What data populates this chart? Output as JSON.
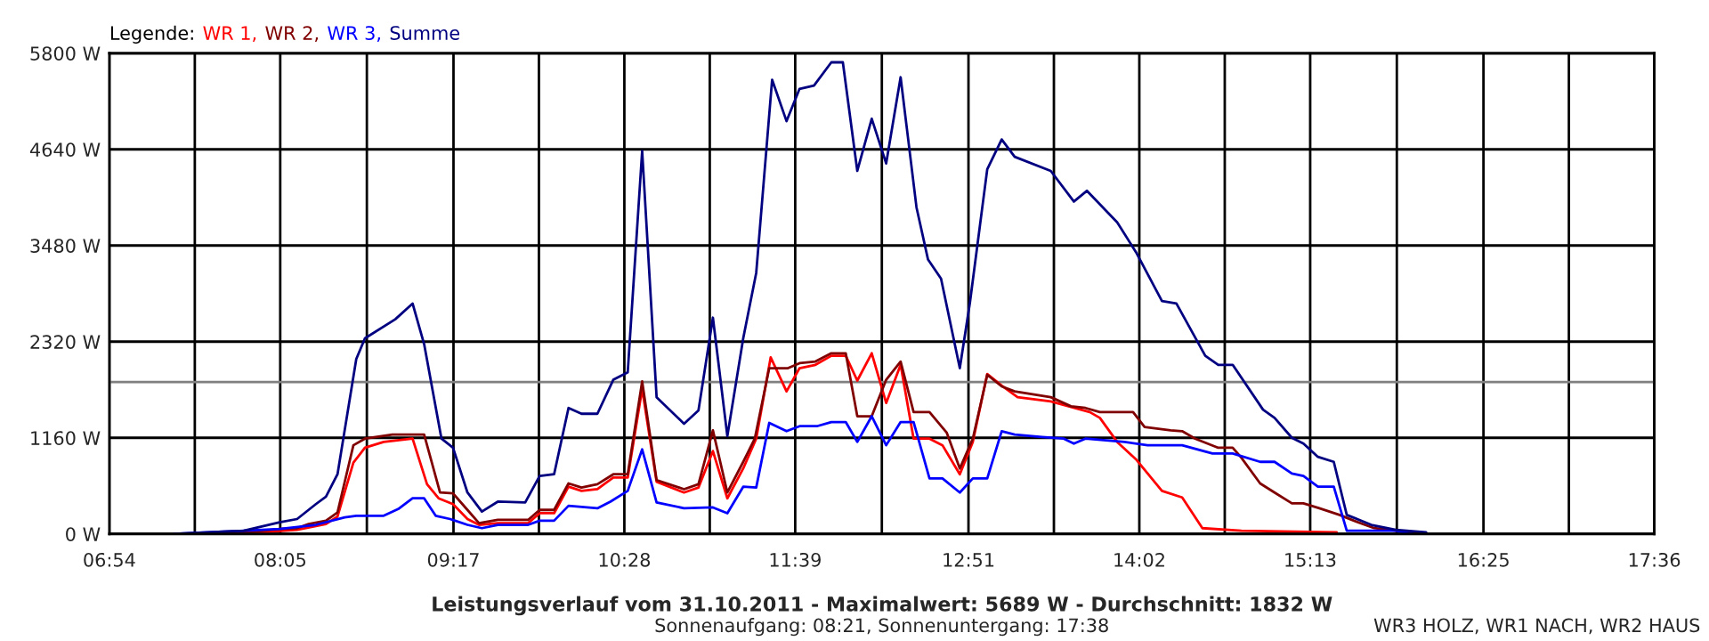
{
  "chart_data": {
    "type": "line",
    "title": "Leistungsverlauf vom 31.10.2011 - Maximalwert: 5689 W - Durchschnitt: 1832 W",
    "subtitle": "Sonnenaufgang: 08:21, Sonnenuntergang: 17:38",
    "annotations": [
      "WR3 HOLZ, WR1 NACH, WR2 HAUS"
    ],
    "legend_title": "Legende:",
    "legend": "top left",
    "grid": true,
    "marker": "none",
    "line_style": "solid",
    "xlim": [
      6.9,
      17.6
    ],
    "ylim": [
      0,
      5800
    ],
    "xticks": [
      {
        "value": 6.9,
        "label": "06:54"
      },
      {
        "value": 7.4917,
        "label": null
      },
      {
        "value": 8.0833,
        "label": "08:05"
      },
      {
        "value": 8.6833,
        "label": null
      },
      {
        "value": 9.2833,
        "label": "09:17"
      },
      {
        "value": 9.875,
        "label": null
      },
      {
        "value": 10.4667,
        "label": "10:28"
      },
      {
        "value": 11.0583,
        "label": null
      },
      {
        "value": 11.65,
        "label": "11:39"
      },
      {
        "value": 12.25,
        "label": null
      },
      {
        "value": 12.85,
        "label": "12:51"
      },
      {
        "value": 13.4417,
        "label": null
      },
      {
        "value": 14.0333,
        "label": "14:02"
      },
      {
        "value": 14.625,
        "label": null
      },
      {
        "value": 15.2167,
        "label": "15:13"
      },
      {
        "value": 15.8167,
        "label": null
      },
      {
        "value": 16.4167,
        "label": "16:25"
      },
      {
        "value": 17.0083,
        "label": null
      },
      {
        "value": 17.6,
        "label": "17:36"
      }
    ],
    "yticks": [
      {
        "value": 0,
        "label": "0 W"
      },
      {
        "value": 1160,
        "label": "1160 W"
      },
      {
        "value": 2320,
        "label": "2320 W"
      },
      {
        "value": 3480,
        "label": "3480 W"
      },
      {
        "value": 4640,
        "label": "4640 W"
      },
      {
        "value": 5800,
        "label": "5800 W"
      }
    ],
    "ref_lines": [
      {
        "axis": "y",
        "value": 1832,
        "color": "#808080"
      }
    ],
    "series": [
      {
        "name": "WR 1,",
        "color": "#ff0000",
        "x": [
          7.35,
          7.87,
          8.2,
          8.4,
          8.48,
          8.59,
          8.67,
          8.8,
          9.0,
          9.1,
          9.18,
          9.28,
          9.38,
          9.46,
          9.59,
          9.8,
          9.88,
          9.98,
          10.08,
          10.17,
          10.28,
          10.39,
          10.49,
          10.59,
          10.69,
          10.88,
          10.98,
          11.08,
          11.18,
          11.29,
          11.38,
          11.48,
          11.59,
          11.68,
          11.79,
          11.9,
          12.0,
          12.08,
          12.18,
          12.28,
          12.38,
          12.47,
          12.58,
          12.67,
          12.79,
          12.88,
          12.98,
          13.08,
          13.19,
          13.42,
          13.69,
          13.76,
          13.88,
          14.01,
          14.19,
          14.33,
          14.47,
          14.74,
          15.4
        ],
        "values": [
          0,
          10,
          50,
          120,
          210,
          860,
          1040,
          1110,
          1150,
          600,
          430,
          360,
          180,
          110,
          130,
          130,
          250,
          250,
          570,
          520,
          540,
          680,
          680,
          1750,
          630,
          500,
          560,
          1000,
          430,
          790,
          1150,
          2130,
          1720,
          2000,
          2040,
          2150,
          2150,
          1850,
          2180,
          1580,
          2040,
          1150,
          1150,
          1070,
          720,
          1110,
          1930,
          1790,
          1650,
          1600,
          1470,
          1400,
          1110,
          900,
          520,
          440,
          70,
          40,
          20
        ]
      },
      {
        "name": "WR 2,",
        "color": "#800000",
        "x": [
          7.35,
          7.87,
          8.08,
          8.2,
          8.28,
          8.4,
          8.48,
          8.59,
          8.67,
          8.86,
          9.08,
          9.19,
          9.28,
          9.38,
          9.46,
          9.59,
          9.8,
          9.88,
          9.98,
          10.08,
          10.17,
          10.28,
          10.39,
          10.49,
          10.59,
          10.69,
          10.88,
          10.98,
          11.08,
          11.18,
          11.29,
          11.37,
          11.47,
          11.6,
          11.68,
          11.79,
          11.9,
          12.0,
          12.08,
          12.18,
          12.28,
          12.38,
          12.47,
          12.58,
          12.7,
          12.79,
          12.88,
          12.98,
          13.08,
          13.17,
          13.42,
          13.56,
          13.66,
          13.76,
          13.99,
          14.07,
          14.25,
          14.33,
          14.42,
          14.58,
          14.68,
          14.74,
          14.87,
          14.97,
          15.09,
          15.17,
          15.28,
          15.42,
          15.52,
          15.66,
          15.81,
          15.97
        ],
        "values": [
          0,
          20,
          60,
          70,
          120,
          160,
          260,
          1070,
          1150,
          1200,
          1200,
          500,
          490,
          290,
          130,
          170,
          170,
          290,
          290,
          610,
          560,
          600,
          720,
          720,
          1840,
          650,
          540,
          600,
          1250,
          500,
          870,
          1150,
          2000,
          2000,
          2060,
          2080,
          2180,
          2180,
          1420,
          1420,
          1860,
          2080,
          1470,
          1470,
          1220,
          790,
          1150,
          1920,
          1780,
          1720,
          1650,
          1540,
          1520,
          1470,
          1470,
          1290,
          1250,
          1240,
          1150,
          1040,
          1040,
          920,
          610,
          500,
          370,
          370,
          310,
          230,
          160,
          70,
          40,
          0
        ]
      },
      {
        "name": "WR 3,",
        "color": "#0000ff",
        "x": [
          7.35,
          8.08,
          8.33,
          8.53,
          8.61,
          8.8,
          8.9,
          9.0,
          9.08,
          9.16,
          9.26,
          9.38,
          9.48,
          9.59,
          9.8,
          9.88,
          9.98,
          10.08,
          10.28,
          10.37,
          10.49,
          10.59,
          10.69,
          10.88,
          11.08,
          11.18,
          11.29,
          11.38,
          11.47,
          11.59,
          11.68,
          11.8,
          11.9,
          12.0,
          12.08,
          12.18,
          12.28,
          12.38,
          12.47,
          12.58,
          12.67,
          12.79,
          12.88,
          12.98,
          13.08,
          13.17,
          13.36,
          13.51,
          13.58,
          13.66,
          13.93,
          14.09,
          14.33,
          14.54,
          14.68,
          14.87,
          14.97,
          15.09,
          15.17,
          15.27,
          15.38,
          15.47,
          15.81,
          15.93
        ],
        "values": [
          0,
          60,
          110,
          200,
          220,
          220,
          300,
          430,
          430,
          220,
          180,
          110,
          70,
          110,
          110,
          160,
          160,
          340,
          310,
          390,
          520,
          1020,
          380,
          310,
          320,
          250,
          570,
          560,
          1340,
          1240,
          1300,
          1300,
          1350,
          1350,
          1110,
          1420,
          1070,
          1350,
          1350,
          670,
          670,
          500,
          670,
          670,
          1240,
          1200,
          1170,
          1150,
          1090,
          1150,
          1110,
          1070,
          1070,
          970,
          970,
          870,
          870,
          730,
          700,
          570,
          570,
          40,
          40,
          0
        ]
      },
      {
        "name": "Summe",
        "color": "#000080",
        "x": [
          7.35,
          7.83,
          8.08,
          8.2,
          8.33,
          8.4,
          8.48,
          8.61,
          8.67,
          8.88,
          9.0,
          9.08,
          9.2,
          9.28,
          9.38,
          9.48,
          9.59,
          9.78,
          9.88,
          9.98,
          10.08,
          10.17,
          10.28,
          10.39,
          10.49,
          10.59,
          10.69,
          10.88,
          10.98,
          11.08,
          11.18,
          11.29,
          11.38,
          11.49,
          11.59,
          11.68,
          11.78,
          11.9,
          11.98,
          12.08,
          12.18,
          12.28,
          12.38,
          12.49,
          12.57,
          12.66,
          12.79,
          12.86,
          12.98,
          13.08,
          13.17,
          13.42,
          13.58,
          13.67,
          13.88,
          14.01,
          14.19,
          14.29,
          14.49,
          14.58,
          14.68,
          14.89,
          14.97,
          15.09,
          15.17,
          15.27,
          15.38,
          15.47,
          15.64,
          15.81,
          16.02
        ],
        "values": [
          0,
          40,
          140,
          180,
          360,
          450,
          720,
          2110,
          2360,
          2590,
          2780,
          2290,
          1150,
          1040,
          500,
          270,
          390,
          380,
          700,
          720,
          1520,
          1450,
          1450,
          1860,
          1950,
          4620,
          1650,
          1330,
          1490,
          2610,
          1180,
          2360,
          3150,
          5480,
          4980,
          5370,
          5410,
          5690,
          5690,
          4380,
          5010,
          4470,
          5510,
          3940,
          3310,
          3080,
          2000,
          2790,
          4400,
          4760,
          4550,
          4380,
          4010,
          4140,
          3760,
          3400,
          2810,
          2780,
          2150,
          2040,
          2040,
          1500,
          1400,
          1160,
          1090,
          930,
          870,
          230,
          110,
          50,
          20
        ]
      }
    ]
  }
}
